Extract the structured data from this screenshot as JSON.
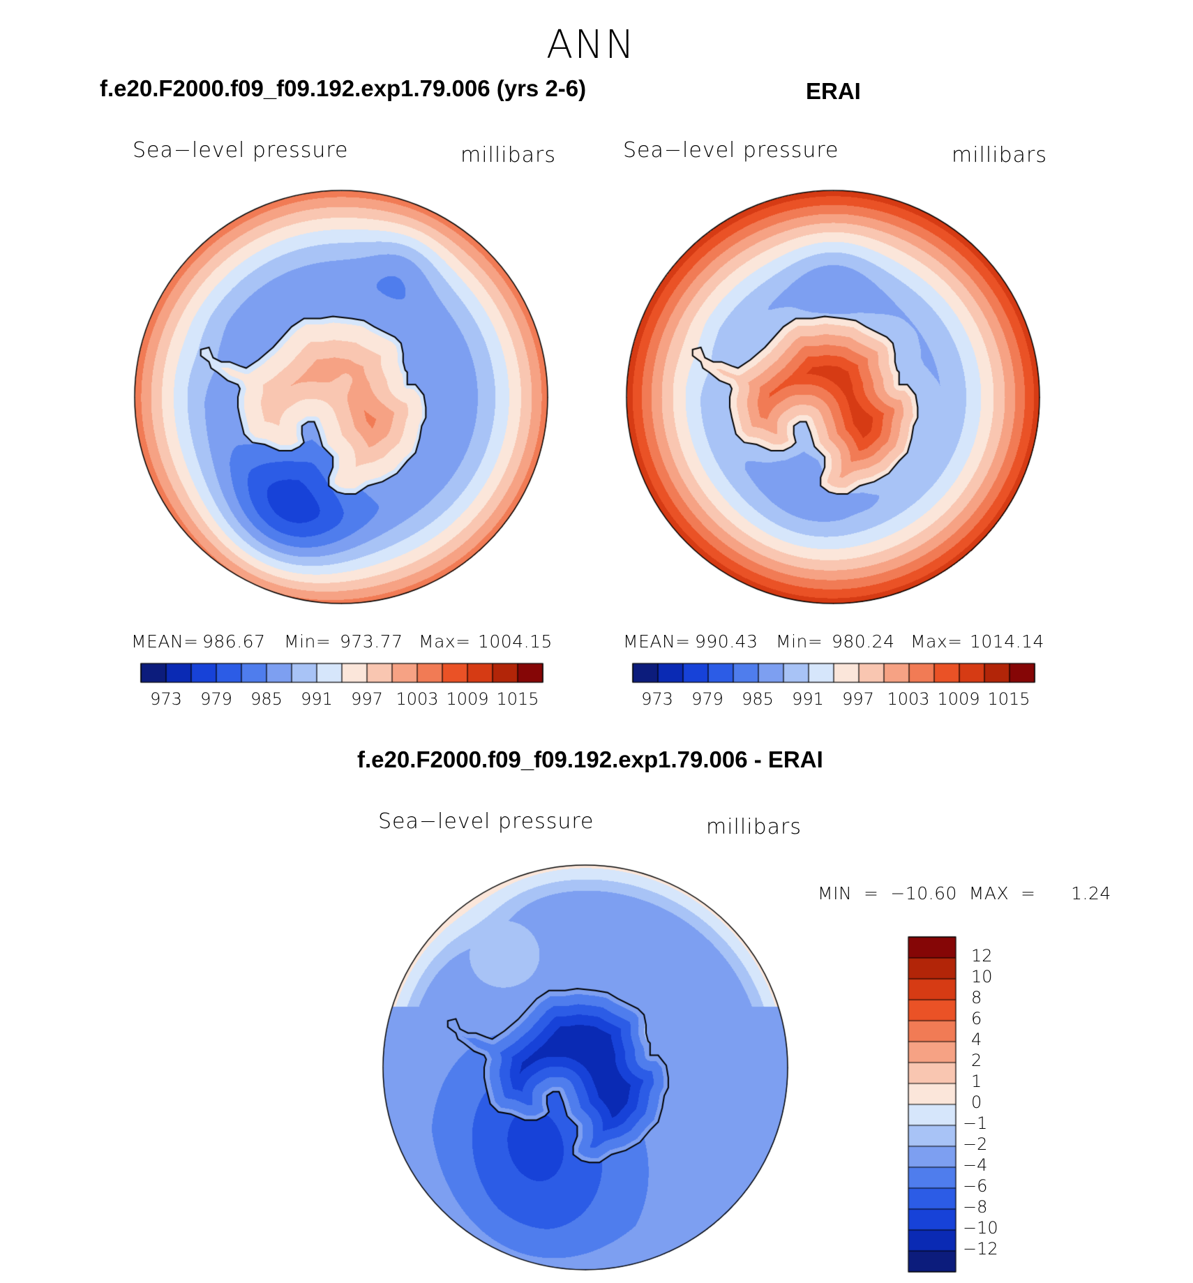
{
  "season": "ANN",
  "colors": {
    "pressure_palette": [
      "#0c1c7c",
      "#0a2ab4",
      "#1742d8",
      "#2c5ce6",
      "#4f7ded",
      "#7d9ff1",
      "#a8c3f6",
      "#d6e6fb",
      "#fbe6da",
      "#f9c6b1",
      "#f6a284",
      "#f17b55",
      "#ea5226",
      "#d63b14",
      "#b22508",
      "#850606"
    ],
    "diff_palette": [
      "#0c1c7c",
      "#0a2ab4",
      "#1742d8",
      "#2c5ce6",
      "#4f7ded",
      "#7d9ff1",
      "#a8c3f6",
      "#d6e6fb",
      "#fbe6da",
      "#f9c6b1",
      "#f6a284",
      "#f17b55",
      "#ea5226",
      "#d63b14",
      "#b22508",
      "#850606"
    ],
    "coast": "#000000"
  },
  "panels": {
    "model": {
      "title": "f.e20.F2000.f09_f09.192.exp1.79.006 (yrs 2-6)",
      "field": "Sea−level  pressure",
      "units": "millibars",
      "mean_label": "MEAN=",
      "mean_value": "986.67",
      "min_label": "Min=",
      "min_value": "973.77",
      "max_label": "Max=",
      "max_value": "1004.15"
    },
    "obs": {
      "title": "ERAI",
      "field": "Sea−level  pressure",
      "units": "millibars",
      "mean_label": "MEAN=",
      "mean_value": "990.43",
      "min_label": "Min=",
      "min_value": "980.24",
      "max_label": "Max=",
      "max_value": "1014.14"
    },
    "diff": {
      "title": "f.e20.F2000.f09_f09.192.exp1.79.006 - ERAI",
      "field": "Sea−level  pressure",
      "units": "millibars",
      "minmax": "MIN  =  −10.60  MAX  =      1.24"
    }
  },
  "colorbar_ticks": [
    "973",
    "979",
    "985",
    "991",
    "997",
    "1003",
    "1009",
    "1015"
  ],
  "diff_colorbar_ticks": [
    "12",
    "10",
    "8",
    "6",
    "4",
    "2",
    "1",
    "0",
    "−1",
    "−2",
    "−4",
    "−6",
    "−8",
    "−10",
    "−12"
  ]
}
